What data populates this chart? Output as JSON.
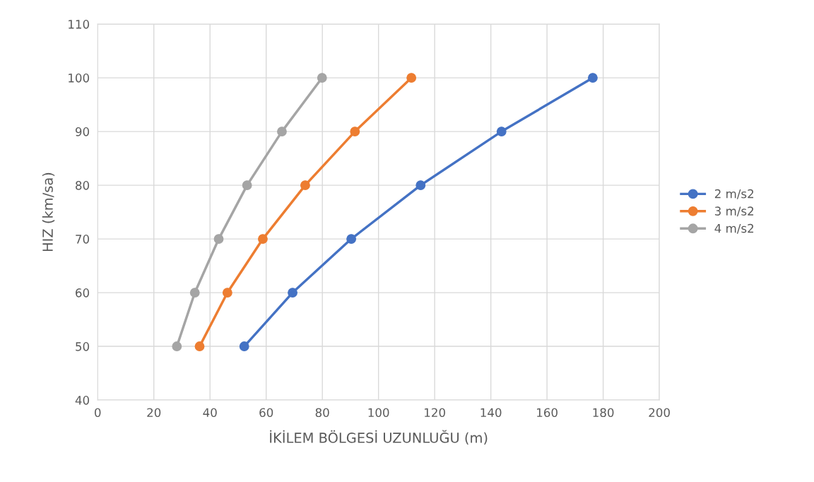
{
  "chart_data": {
    "type": "line",
    "xlabel": "İKİLEM BÖLGESİ UZUNLUĞU (m)",
    "ylabel": "HIZ (km/sa)",
    "xlim": [
      0,
      200
    ],
    "xticks": [
      0,
      20,
      40,
      60,
      80,
      100,
      120,
      140,
      160,
      180,
      200
    ],
    "ylim": [
      40,
      110
    ],
    "yticks": [
      40,
      50,
      60,
      70,
      80,
      90,
      100,
      110
    ],
    "grid": true,
    "legend": "right",
    "marker": "circle",
    "line_style": "solid",
    "series": [
      {
        "name": "2 m/s2",
        "color": "#4472c4",
        "x": [
          52.2,
          69.4,
          90.3,
          115,
          143.8,
          176.3
        ],
        "values": [
          50,
          60,
          70,
          80,
          90,
          100
        ]
      },
      {
        "name": "3 m/s2",
        "color": "#ed7d31",
        "x": [
          36.3,
          46.2,
          58.8,
          73.9,
          91.6,
          111.7
        ],
        "values": [
          50,
          60,
          70,
          80,
          90,
          100
        ]
      },
      {
        "name": "4 m/s2",
        "color": "#a5a5a5",
        "x": [
          28.2,
          34.6,
          43.1,
          53.2,
          65.6,
          79.9
        ],
        "values": [
          50,
          60,
          70,
          80,
          90,
          100
        ]
      }
    ]
  }
}
